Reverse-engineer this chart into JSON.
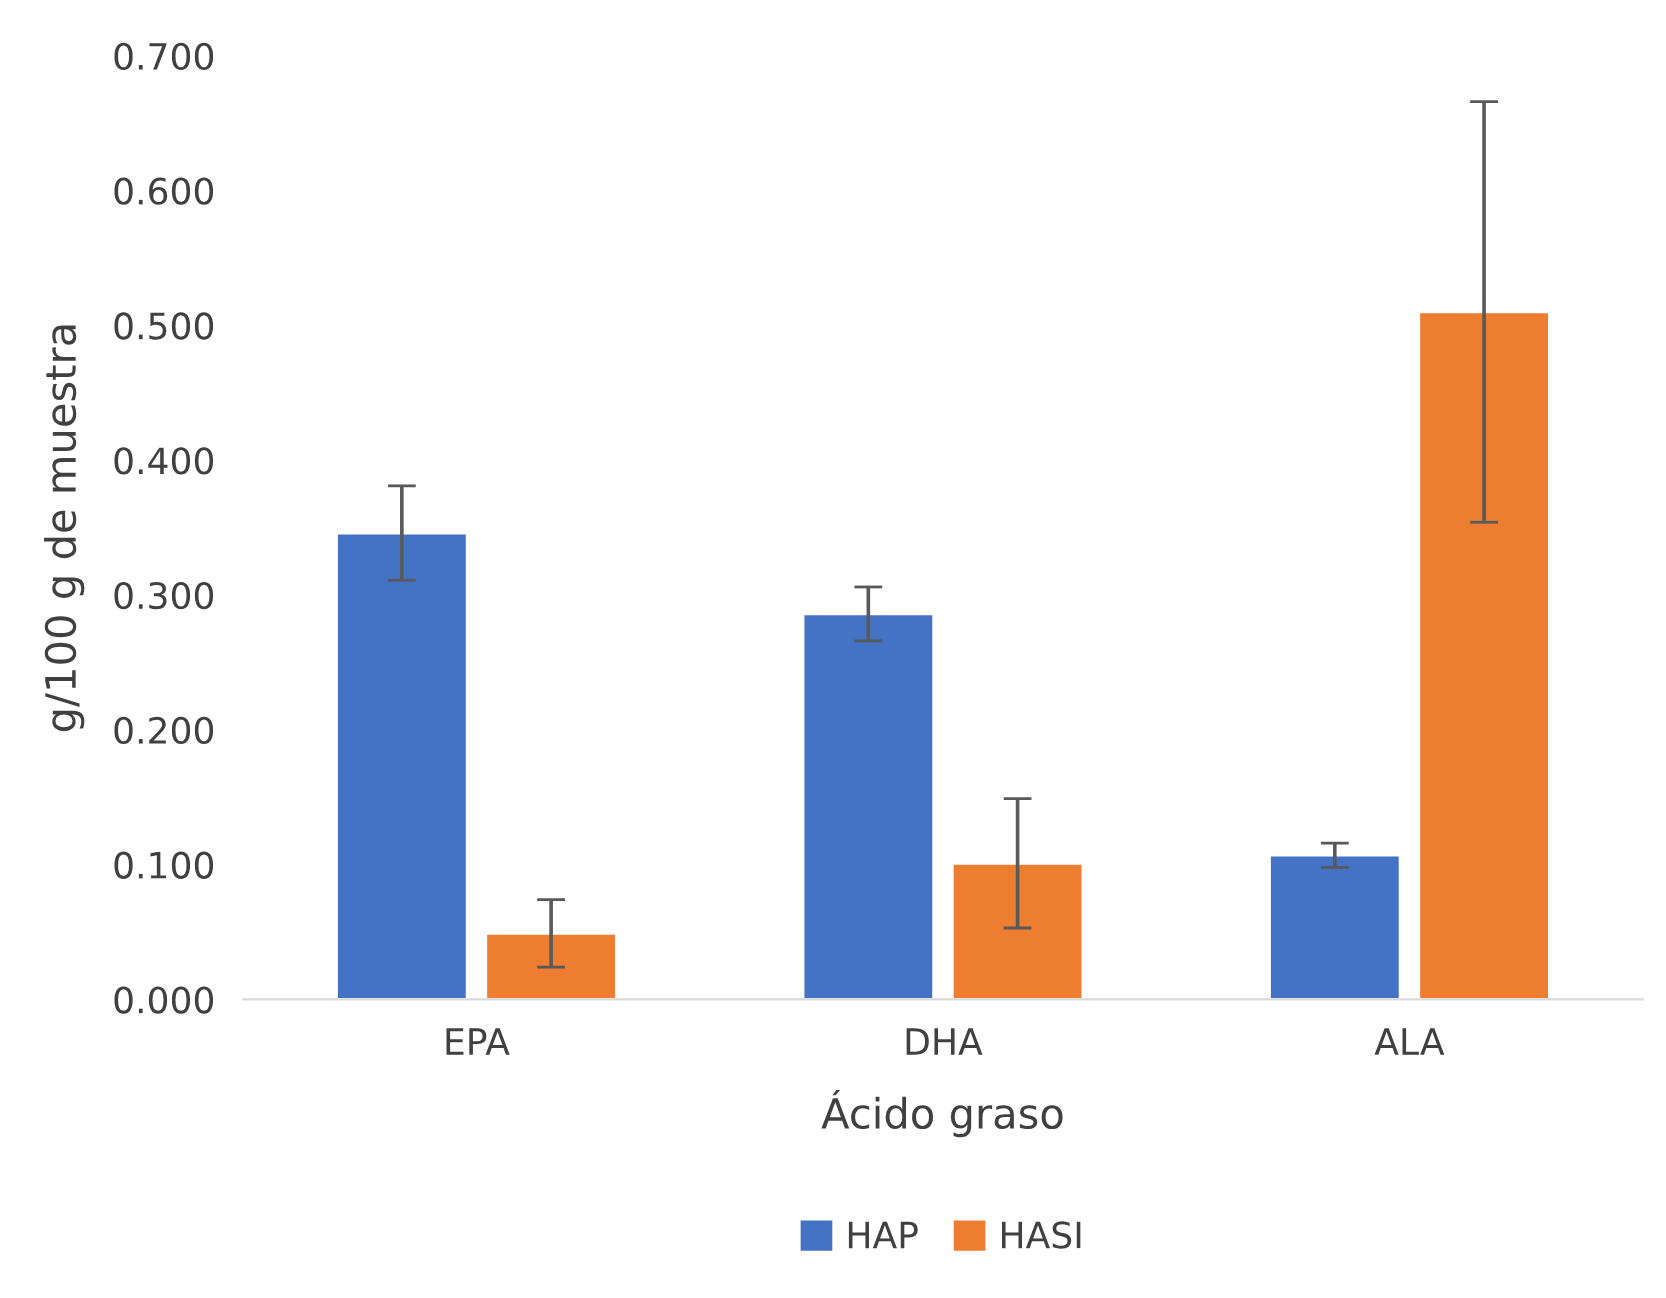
{
  "chart_data": {
    "type": "bar",
    "xlabel": "Ácido graso",
    "ylabel": "g/100 g de muestra",
    "categories": [
      "EPA",
      "DHA",
      "ALA"
    ],
    "series": [
      {
        "name": "HAP",
        "color": "#4472c4",
        "values": [
          0.346,
          0.286,
          0.107
        ],
        "errors": [
          0.035,
          0.02,
          0.009
        ]
      },
      {
        "name": "HASI",
        "color": "#ed7d31",
        "values": [
          0.049,
          0.101,
          0.51
        ],
        "errors": [
          0.025,
          0.048,
          0.156
        ]
      }
    ],
    "ylim": [
      0,
      0.7
    ],
    "yticks": [
      {
        "value": 0,
        "label": "0.000"
      },
      {
        "value": 0.1,
        "label": "0.100"
      },
      {
        "value": 0.2,
        "label": "0.200"
      },
      {
        "value": 0.3,
        "label": "0.300"
      },
      {
        "value": 0.4,
        "label": "0.400"
      },
      {
        "value": 0.5,
        "label": "0.500"
      },
      {
        "value": 0.6,
        "label": "0.600"
      },
      {
        "value": 0.7,
        "label": "0.700"
      }
    ],
    "legend": "bottom",
    "grid": false
  }
}
